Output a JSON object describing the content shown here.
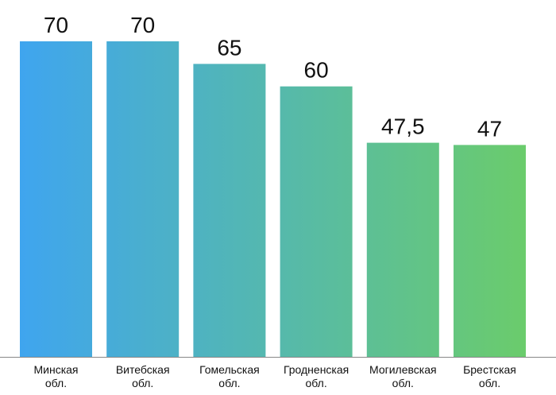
{
  "chart_data": {
    "type": "bar",
    "categories": [
      [
        "Минская",
        "обл."
      ],
      [
        "Витебская",
        "обл."
      ],
      [
        "Гомельская",
        "обл."
      ],
      [
        "Гродненская",
        "обл."
      ],
      [
        "Могилевская",
        "обл."
      ],
      [
        "Брестская",
        "обл."
      ]
    ],
    "values": [
      70,
      70,
      65,
      60,
      47.5,
      47
    ],
    "value_labels": [
      "70",
      "70",
      "65",
      "60",
      "47,5",
      "47"
    ],
    "title": "",
    "xlabel": "",
    "ylabel": "",
    "ylim": [
      0,
      70
    ],
    "grid": false,
    "legend": "none",
    "colors": {
      "gradient_start": "#3fa5ef",
      "gradient_end": "#6bcc6b",
      "axis": "#888888",
      "text": "#111111"
    }
  }
}
